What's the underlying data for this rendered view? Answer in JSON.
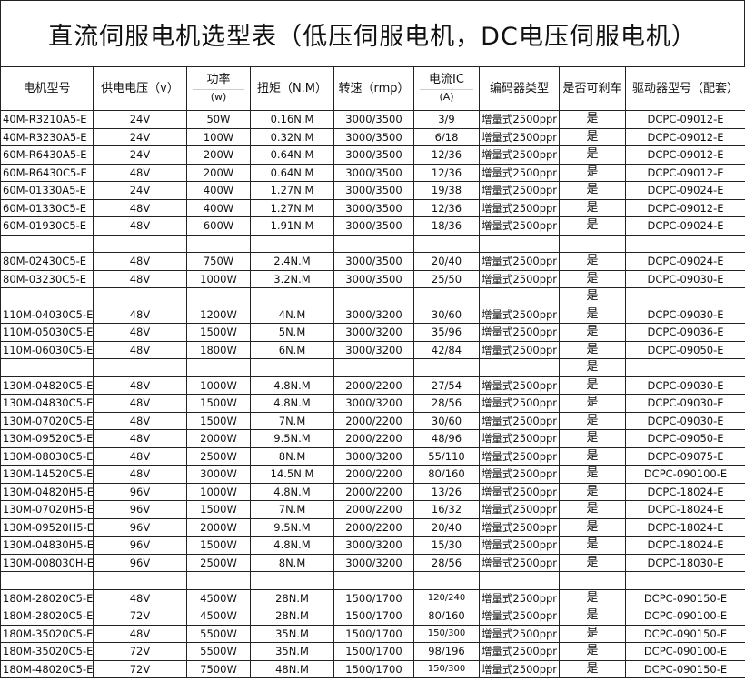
{
  "title": "直流伺服电机选型表（低压伺服电机，DC电压伺服电机）",
  "headers": [
    {
      "main": "电机型号"
    },
    {
      "main": "供电电压（v）"
    },
    {
      "main": "功率",
      "sub": "(w)"
    },
    {
      "main": "扭矩（N.M）"
    },
    {
      "main": "转速（rmp）"
    },
    {
      "main": "电流IC",
      "sub": "(A)"
    },
    {
      "main": "编码器类型"
    },
    {
      "main": "是否可刹车"
    },
    {
      "main": "驱动器型号（配套）"
    }
  ],
  "rows": [
    [
      "40M-R3210A5-E",
      "24V",
      "50W",
      "0.16N.M",
      "3000/3500",
      "3/9",
      "增量式2500ppr",
      "是",
      "DCPC-09012-E"
    ],
    [
      "40M-R3230A5-E",
      "24V",
      "100W",
      "0.32N.M",
      "3000/3500",
      "6/18",
      "增量式2500ppr",
      "是",
      "DCPC-09012-E"
    ],
    [
      "60M-R6430A5-E",
      "24V",
      "200W",
      "0.64N.M",
      "3000/3500",
      "12/36",
      "增量式2500ppr",
      "是",
      "DCPC-09012-E"
    ],
    [
      "60M-R6430C5-E",
      "48V",
      "200W",
      "0.64N.M",
      "3000/3500",
      "12/36",
      "增量式2500ppr",
      "是",
      "DCPC-09012-E"
    ],
    [
      "60M-01330A5-E",
      "24V",
      "400W",
      "1.27N.M",
      "3000/3500",
      "19/38",
      "增量式2500ppr",
      "是",
      "DCPC-09024-E"
    ],
    [
      "60M-01330C5-E",
      "48V",
      "400W",
      "1.27N.M",
      "3000/3500",
      "12/36",
      "增量式2500ppr",
      "是",
      "DCPC-09012-E"
    ],
    [
      "60M-01930C5-E",
      "48V",
      "600W",
      "1.91N.M",
      "3000/3500",
      "18/36",
      "增量式2500ppr",
      "是",
      "DCPC-09024-E"
    ],
    [
      "",
      "",
      "",
      "",
      "",
      "",
      "",
      "",
      ""
    ],
    [
      "80M-02430C5-E",
      "48V",
      "750W",
      "2.4N.M",
      "3000/3500",
      "20/40",
      "增量式2500ppr",
      "是",
      "DCPC-09024-E"
    ],
    [
      "80M-03230C5-E",
      "48V",
      "1000W",
      "3.2N.M",
      "3000/3500",
      "25/50",
      "增量式2500ppr",
      "是",
      "DCPC-09030-E"
    ],
    [
      "",
      "",
      "",
      "",
      "",
      "",
      "",
      "是",
      ""
    ],
    [
      "110M-04030C5-E",
      "48V",
      "1200W",
      "4N.M",
      "3000/3200",
      "30/60",
      "增量式2500ppr",
      "是",
      "DCPC-09030-E"
    ],
    [
      "110M-05030C5-E",
      "48V",
      "1500W",
      "5N.M",
      "3000/3200",
      "35/96",
      "增量式2500ppr",
      "是",
      "DCPC-09036-E"
    ],
    [
      "110M-06030C5-E",
      "48V",
      "1800W",
      "6N.M",
      "3000/3200",
      "42/84",
      "增量式2500ppr",
      "是",
      "DCPC-09050-E"
    ],
    [
      "",
      "",
      "",
      "",
      "",
      "",
      "",
      "是",
      ""
    ],
    [
      "130M-04820C5-E",
      "48V",
      "1000W",
      "4.8N.M",
      "2000/2200",
      "27/54",
      "增量式2500ppr",
      "是",
      "DCPC-09030-E"
    ],
    [
      "130M-04830C5-E",
      "48V",
      "1500W",
      "4.8N.M",
      "3000/3200",
      "28/56",
      "增量式2500ppr",
      "是",
      "DCPC-09030-E"
    ],
    [
      "130M-07020C5-E",
      "48V",
      "1500W",
      "7N.M",
      "2000/2200",
      "30/60",
      "增量式2500ppr",
      "是",
      "DCPC-09030-E"
    ],
    [
      "130M-09520C5-E",
      "48V",
      "2000W",
      "9.5N.M",
      "2000/2200",
      "48/96",
      "增量式2500ppr",
      "是",
      "DCPC-09050-E"
    ],
    [
      "130M-08030C5-E",
      "48V",
      "2500W",
      "8N.M",
      "3000/3200",
      "55/110",
      "增量式2500ppr",
      "是",
      "DCPC-09075-E"
    ],
    [
      "130M-14520C5-E",
      "48V",
      "3000W",
      "14.5N.M",
      "2000/2200",
      "80/160",
      "增量式2500ppr",
      "是",
      "DCPC-090100-E"
    ],
    [
      "130M-04820H5-E",
      "96V",
      "1000W",
      "4.8N.M",
      "2000/2200",
      "13/26",
      "增量式2500ppr",
      "是",
      "DCPC-18024-E"
    ],
    [
      "130M-07020H5-E",
      "96V",
      "1500W",
      "7N.M",
      "2000/2200",
      "16/32",
      "增量式2500ppr",
      "是",
      "DCPC-18024-E"
    ],
    [
      "130M-09520H5-E",
      "96V",
      "2000W",
      "9.5N.M",
      "2000/2200",
      "20/40",
      "增量式2500ppr",
      "是",
      "DCPC-18024-E"
    ],
    [
      "130M-04830H5-E",
      "96V",
      "1500W",
      "4.8N.M",
      "3000/3200",
      "15/30",
      "增量式2500ppr",
      "是",
      "DCPC-18024-E"
    ],
    [
      "130M-008030H-E",
      "96V",
      "2500W",
      "8N.M",
      "3000/3200",
      "28/56",
      "增量式2500ppr",
      "是",
      "DCPC-18030-E"
    ],
    [
      "",
      "",
      "",
      "",
      "",
      "",
      "",
      "",
      ""
    ],
    [
      "180M-28020C5-E",
      "48V",
      "4500W",
      "28N.M",
      "1500/1700",
      "120/240",
      "增量式2500ppr",
      "是",
      "DCPC-090150-E"
    ],
    [
      "180M-28020C5-E",
      "72V",
      "4500W",
      "28N.M",
      "1500/1700",
      "80/160",
      "增量式2500ppr",
      "是",
      "DCPC-090100-E"
    ],
    [
      "180M-35020C5-E",
      "48V",
      "5500W",
      "35N.M",
      "1500/1700",
      "150/300",
      "增量式2500ppr",
      "是",
      "DCPC-090150-E"
    ],
    [
      "180M-35020C5-E",
      "72V",
      "5500W",
      "35N.M",
      "1500/1700",
      "98/196",
      "增量式2500ppr",
      "是",
      "DCPC-090100-E"
    ],
    [
      "180M-48020C5-E",
      "72V",
      "7500W",
      "48N.M",
      "1500/1700",
      "150/300",
      "增量式2500ppr",
      "是",
      "DCPC-090150-E"
    ]
  ]
}
